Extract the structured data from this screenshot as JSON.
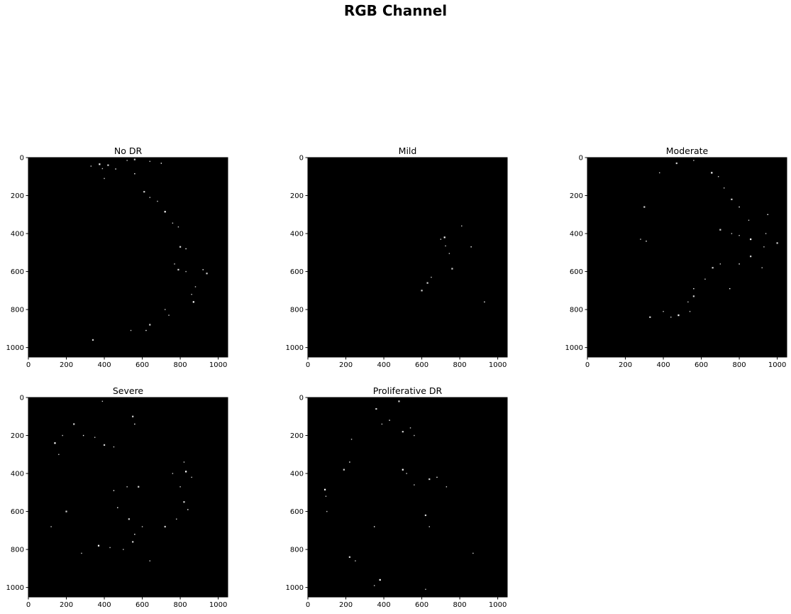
{
  "figure": {
    "suptitle": "RGB Channel"
  },
  "chart_data": [
    {
      "type": "heatmap",
      "title": "No DR",
      "xlim": [
        0,
        1050
      ],
      "ylim": [
        1050,
        0
      ],
      "xticks": [
        0,
        200,
        400,
        600,
        800,
        1000
      ],
      "yticks": [
        0,
        200,
        400,
        600,
        800,
        1000
      ],
      "grid": false,
      "colormap": "gray",
      "background": "#000000",
      "bright_points": [
        [
          375,
          35
        ],
        [
          390,
          58
        ],
        [
          330,
          45
        ],
        [
          420,
          40
        ],
        [
          460,
          60
        ],
        [
          520,
          15
        ],
        [
          560,
          10
        ],
        [
          640,
          20
        ],
        [
          700,
          30
        ],
        [
          610,
          180
        ],
        [
          640,
          210
        ],
        [
          680,
          230
        ],
        [
          720,
          285
        ],
        [
          760,
          345
        ],
        [
          790,
          365
        ],
        [
          800,
          470
        ],
        [
          830,
          480
        ],
        [
          770,
          560
        ],
        [
          790,
          590
        ],
        [
          830,
          600
        ],
        [
          920,
          590
        ],
        [
          940,
          610
        ],
        [
          880,
          680
        ],
        [
          860,
          720
        ],
        [
          870,
          760
        ],
        [
          720,
          800
        ],
        [
          740,
          830
        ],
        [
          640,
          880
        ],
        [
          620,
          910
        ],
        [
          540,
          910
        ],
        [
          340,
          960
        ],
        [
          400,
          110
        ],
        [
          560,
          85
        ]
      ]
    },
    {
      "type": "heatmap",
      "title": "Mild",
      "xlim": [
        0,
        1050
      ],
      "ylim": [
        1050,
        0
      ],
      "xticks": [
        0,
        200,
        400,
        600,
        800,
        1000
      ],
      "yticks": [
        0,
        200,
        400,
        600,
        800,
        1000
      ],
      "grid": false,
      "colormap": "gray",
      "background": "#000000",
      "bright_points": [
        [
          720,
          420
        ],
        [
          725,
          465
        ],
        [
          745,
          505
        ],
        [
          760,
          585
        ],
        [
          860,
          470
        ],
        [
          650,
          630
        ],
        [
          630,
          660
        ],
        [
          700,
          430
        ],
        [
          930,
          760
        ],
        [
          600,
          700
        ],
        [
          810,
          360
        ]
      ]
    },
    {
      "type": "heatmap",
      "title": "Moderate",
      "xlim": [
        0,
        1050
      ],
      "ylim": [
        1050,
        0
      ],
      "xticks": [
        0,
        200,
        400,
        600,
        800,
        1000
      ],
      "yticks": [
        0,
        200,
        400,
        600,
        800,
        1000
      ],
      "grid": false,
      "colormap": "gray",
      "background": "#000000",
      "bright_points": [
        [
          655,
          80
        ],
        [
          690,
          100
        ],
        [
          720,
          160
        ],
        [
          760,
          220
        ],
        [
          800,
          260
        ],
        [
          380,
          80
        ],
        [
          300,
          260
        ],
        [
          280,
          430
        ],
        [
          310,
          440
        ],
        [
          700,
          380
        ],
        [
          760,
          400
        ],
        [
          800,
          410
        ],
        [
          860,
          430
        ],
        [
          940,
          400
        ],
        [
          930,
          470
        ],
        [
          860,
          520
        ],
        [
          800,
          560
        ],
        [
          700,
          560
        ],
        [
          660,
          580
        ],
        [
          620,
          640
        ],
        [
          560,
          690
        ],
        [
          560,
          730
        ],
        [
          530,
          760
        ],
        [
          540,
          810
        ],
        [
          480,
          830
        ],
        [
          440,
          840
        ],
        [
          400,
          810
        ],
        [
          330,
          840
        ],
        [
          750,
          690
        ],
        [
          920,
          580
        ],
        [
          1000,
          450
        ],
        [
          850,
          330
        ],
        [
          950,
          300
        ],
        [
          470,
          30
        ],
        [
          560,
          15
        ]
      ]
    },
    {
      "type": "heatmap",
      "title": "Severe",
      "xlim": [
        0,
        1050
      ],
      "ylim": [
        1050,
        0
      ],
      "xticks": [
        0,
        200,
        400,
        600,
        800,
        1000
      ],
      "yticks": [
        0,
        200,
        400,
        600,
        800,
        1000
      ],
      "grid": false,
      "colormap": "gray",
      "background": "#000000",
      "bright_points": [
        [
          140,
          240
        ],
        [
          160,
          300
        ],
        [
          180,
          200
        ],
        [
          240,
          140
        ],
        [
          290,
          200
        ],
        [
          350,
          210
        ],
        [
          400,
          250
        ],
        [
          450,
          260
        ],
        [
          560,
          140
        ],
        [
          550,
          100
        ],
        [
          390,
          20
        ],
        [
          820,
          340
        ],
        [
          830,
          390
        ],
        [
          860,
          420
        ],
        [
          800,
          470
        ],
        [
          820,
          550
        ],
        [
          840,
          590
        ],
        [
          780,
          640
        ],
        [
          720,
          680
        ],
        [
          600,
          680
        ],
        [
          560,
          720
        ],
        [
          550,
          760
        ],
        [
          500,
          800
        ],
        [
          430,
          790
        ],
        [
          370,
          780
        ],
        [
          280,
          820
        ],
        [
          120,
          680
        ],
        [
          200,
          600
        ],
        [
          450,
          490
        ],
        [
          520,
          470
        ],
        [
          580,
          470
        ],
        [
          760,
          400
        ],
        [
          470,
          580
        ],
        [
          530,
          640
        ],
        [
          640,
          860
        ]
      ]
    },
    {
      "type": "heatmap",
      "title": "Proliferative DR",
      "xlim": [
        0,
        1050
      ],
      "ylim": [
        1050,
        0
      ],
      "xticks": [
        0,
        200,
        400,
        600,
        800,
        1000
      ],
      "yticks": [
        0,
        200,
        400,
        600,
        800,
        1000
      ],
      "grid": false,
      "colormap": "gray",
      "background": "#000000",
      "bright_points": [
        [
          90,
          485
        ],
        [
          95,
          520
        ],
        [
          100,
          600
        ],
        [
          190,
          380
        ],
        [
          220,
          340
        ],
        [
          230,
          220
        ],
        [
          360,
          60
        ],
        [
          390,
          140
        ],
        [
          430,
          120
        ],
        [
          500,
          180
        ],
        [
          540,
          160
        ],
        [
          560,
          200
        ],
        [
          500,
          380
        ],
        [
          520,
          400
        ],
        [
          560,
          460
        ],
        [
          640,
          430
        ],
        [
          680,
          420
        ],
        [
          730,
          470
        ],
        [
          620,
          620
        ],
        [
          640,
          680
        ],
        [
          350,
          680
        ],
        [
          220,
          840
        ],
        [
          250,
          860
        ],
        [
          350,
          990
        ],
        [
          380,
          960
        ],
        [
          620,
          1010
        ],
        [
          870,
          820
        ],
        [
          480,
          20
        ]
      ]
    }
  ]
}
